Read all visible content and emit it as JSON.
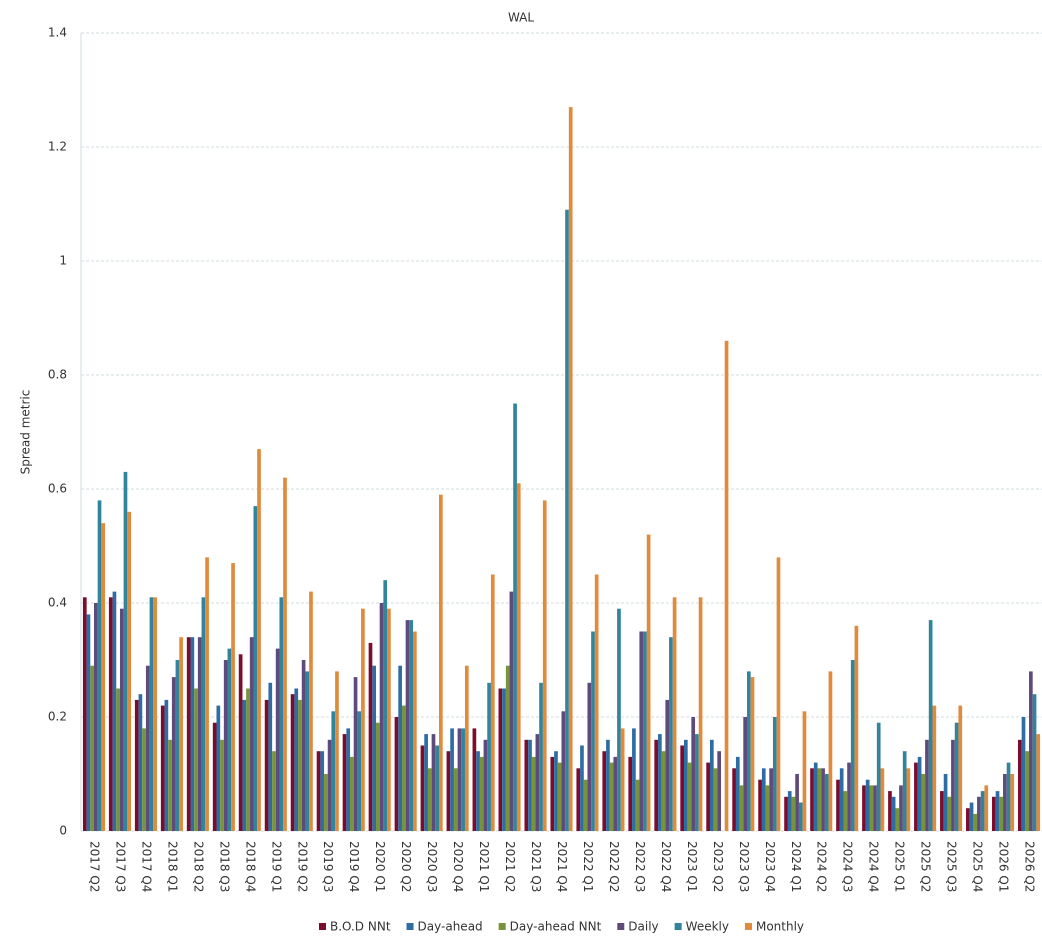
{
  "chart_data": {
    "type": "bar",
    "title": "WAL",
    "y_label": "Spread metric",
    "categories": [
      "2017 Q2",
      "2017 Q3",
      "2017 Q4",
      "2018 Q1",
      "2018 Q2",
      "2018 Q3",
      "2018 Q4",
      "2019 Q1",
      "2019 Q2",
      "2019 Q3",
      "2019 Q4",
      "2020 Q1",
      "2020 Q2",
      "2020 Q3",
      "2020 Q4",
      "2021 Q1",
      "2021 Q2",
      "2021 Q3",
      "2021 Q4",
      "2022 Q1",
      "2022 Q2",
      "2022 Q3",
      "2022 Q4",
      "2023 Q1",
      "2023 Q2",
      "2023 Q3",
      "2023 Q4",
      "2024 Q1",
      "2024 Q2",
      "2024 Q3",
      "2024 Q4",
      "2025 Q1",
      "2025 Q2",
      "2025 Q3",
      "2025 Q4",
      "2026 Q1",
      "2026 Q2"
    ],
    "series": [
      {
        "name": "B.O.D NNt",
        "color": "#7b0c2e",
        "values": [
          0.41,
          0.41,
          0.23,
          0.22,
          0.34,
          0.19,
          0.31,
          0.23,
          0.24,
          0.14,
          0.17,
          0.33,
          0.2,
          0.15,
          0.14,
          0.18,
          0.25,
          0.16,
          0.13,
          0.11,
          0.14,
          0.13,
          0.16,
          0.15,
          0.12,
          0.11,
          0.09,
          0.06,
          0.11,
          0.09,
          0.08,
          0.07,
          0.12,
          0.07,
          0.04,
          0.06,
          0.16
        ]
      },
      {
        "name": "Day-ahead",
        "color": "#2e6da4",
        "values": [
          0.38,
          0.42,
          0.24,
          0.23,
          0.34,
          0.22,
          0.23,
          0.26,
          0.25,
          0.14,
          0.18,
          0.29,
          0.29,
          0.17,
          0.18,
          0.14,
          0.25,
          0.16,
          0.14,
          0.15,
          0.16,
          0.18,
          0.17,
          0.16,
          0.16,
          0.13,
          0.11,
          0.07,
          0.12,
          0.11,
          0.09,
          0.06,
          0.13,
          0.1,
          0.05,
          0.07,
          0.2
        ]
      },
      {
        "name": "Day-ahead NNt",
        "color": "#77933c",
        "values": [
          0.29,
          0.25,
          0.18,
          0.16,
          0.25,
          0.16,
          0.25,
          0.14,
          0.23,
          0.1,
          0.13,
          0.19,
          0.22,
          0.11,
          0.11,
          0.13,
          0.29,
          0.13,
          0.12,
          0.09,
          0.12,
          0.09,
          0.14,
          0.12,
          0.11,
          0.08,
          0.08,
          0.06,
          0.11,
          0.07,
          0.08,
          0.04,
          0.1,
          0.06,
          0.03,
          0.06,
          0.14
        ]
      },
      {
        "name": "Daily",
        "color": "#5f4b7b",
        "values": [
          0.4,
          0.39,
          0.29,
          0.27,
          0.34,
          0.3,
          0.34,
          0.32,
          0.3,
          0.16,
          0.27,
          0.4,
          0.37,
          0.17,
          0.18,
          0.16,
          0.42,
          0.17,
          0.21,
          0.26,
          0.13,
          0.35,
          0.23,
          0.2,
          0.14,
          0.2,
          0.11,
          0.1,
          0.11,
          0.12,
          0.08,
          0.08,
          0.16,
          0.16,
          0.06,
          0.1,
          0.28
        ]
      },
      {
        "name": "Weekly",
        "color": "#31849b",
        "values": [
          0.58,
          0.63,
          0.41,
          0.3,
          0.41,
          0.32,
          0.57,
          0.41,
          0.28,
          0.21,
          0.21,
          0.44,
          0.37,
          0.15,
          0.18,
          0.26,
          0.75,
          0.26,
          1.09,
          0.35,
          0.39,
          0.35,
          0.34,
          0.17,
          null,
          0.28,
          0.2,
          0.05,
          0.1,
          0.3,
          0.19,
          0.14,
          0.37,
          0.19,
          0.07,
          0.12,
          0.24
        ]
      },
      {
        "name": "Monthly",
        "color": "#e08a3c",
        "values": [
          0.54,
          0.56,
          0.41,
          0.34,
          0.48,
          0.47,
          0.67,
          0.62,
          0.42,
          0.28,
          0.39,
          0.39,
          0.35,
          0.59,
          0.29,
          0.45,
          0.61,
          0.58,
          1.27,
          0.45,
          0.18,
          0.52,
          0.41,
          0.41,
          0.86,
          0.27,
          0.48,
          0.21,
          0.28,
          0.36,
          0.11,
          0.11,
          0.22,
          0.22,
          0.08,
          0.1,
          0.17
        ]
      }
    ],
    "ylim": [
      0,
      1.4
    ],
    "yticks": [
      0,
      0.2,
      0.4,
      0.6,
      0.8,
      1,
      1.2,
      1.4
    ],
    "grid": true,
    "legend": "bottom"
  }
}
